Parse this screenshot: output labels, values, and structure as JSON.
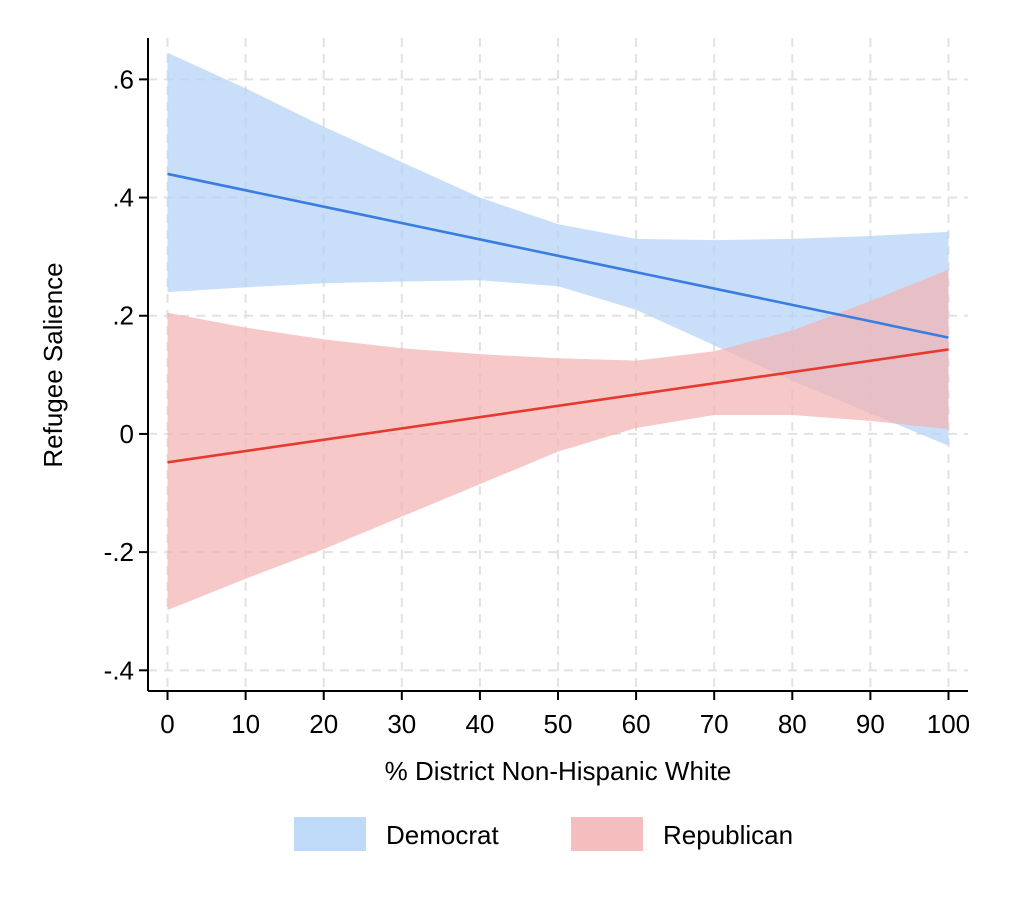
{
  "chart_data": {
    "type": "line",
    "xlabel": "% District Non-Hispanic White",
    "ylabel": "Refugee Salience",
    "xlim": [
      -2.5,
      102.5
    ],
    "ylim": [
      -0.435,
      0.67
    ],
    "x_ticks": [
      0,
      10,
      20,
      30,
      40,
      50,
      60,
      70,
      80,
      90,
      100
    ],
    "x_tick_labels": [
      "0",
      "10",
      "20",
      "30",
      "40",
      "50",
      "60",
      "70",
      "80",
      "90",
      "100"
    ],
    "y_ticks": [
      -0.4,
      -0.2,
      0,
      0.2,
      0.4,
      0.6
    ],
    "y_tick_labels": [
      "-.4",
      "-.2",
      "0",
      ".2",
      ".4",
      ".6"
    ],
    "grid": true,
    "legend_position": "bottom",
    "series": [
      {
        "name": "Democrat",
        "line_color": "#3a7de0",
        "band_color": "#b4d2f7",
        "x": [
          0,
          100
        ],
        "y": [
          0.44,
          0.163
        ],
        "ci_x": [
          0,
          10,
          20,
          30,
          40,
          50,
          60,
          70,
          80,
          90,
          100
        ],
        "ci_lower": [
          0.24,
          0.248,
          0.255,
          0.258,
          0.26,
          0.25,
          0.21,
          0.15,
          0.09,
          0.035,
          -0.02
        ],
        "ci_upper": [
          0.645,
          0.585,
          0.52,
          0.46,
          0.4,
          0.355,
          0.33,
          0.328,
          0.33,
          0.335,
          0.342
        ]
      },
      {
        "name": "Republican",
        "line_color": "#e63a2e",
        "band_color": "#f2b3b3",
        "x": [
          0,
          100
        ],
        "y": [
          -0.048,
          0.143
        ],
        "ci_x": [
          0,
          10,
          20,
          30,
          40,
          50,
          60,
          70,
          80,
          90,
          100
        ],
        "ci_lower": [
          -0.298,
          -0.245,
          -0.195,
          -0.14,
          -0.085,
          -0.03,
          0.01,
          0.032,
          0.032,
          0.022,
          0.008
        ],
        "ci_upper": [
          0.205,
          0.18,
          0.16,
          0.145,
          0.135,
          0.128,
          0.124,
          0.14,
          0.175,
          0.225,
          0.278
        ]
      }
    ]
  }
}
